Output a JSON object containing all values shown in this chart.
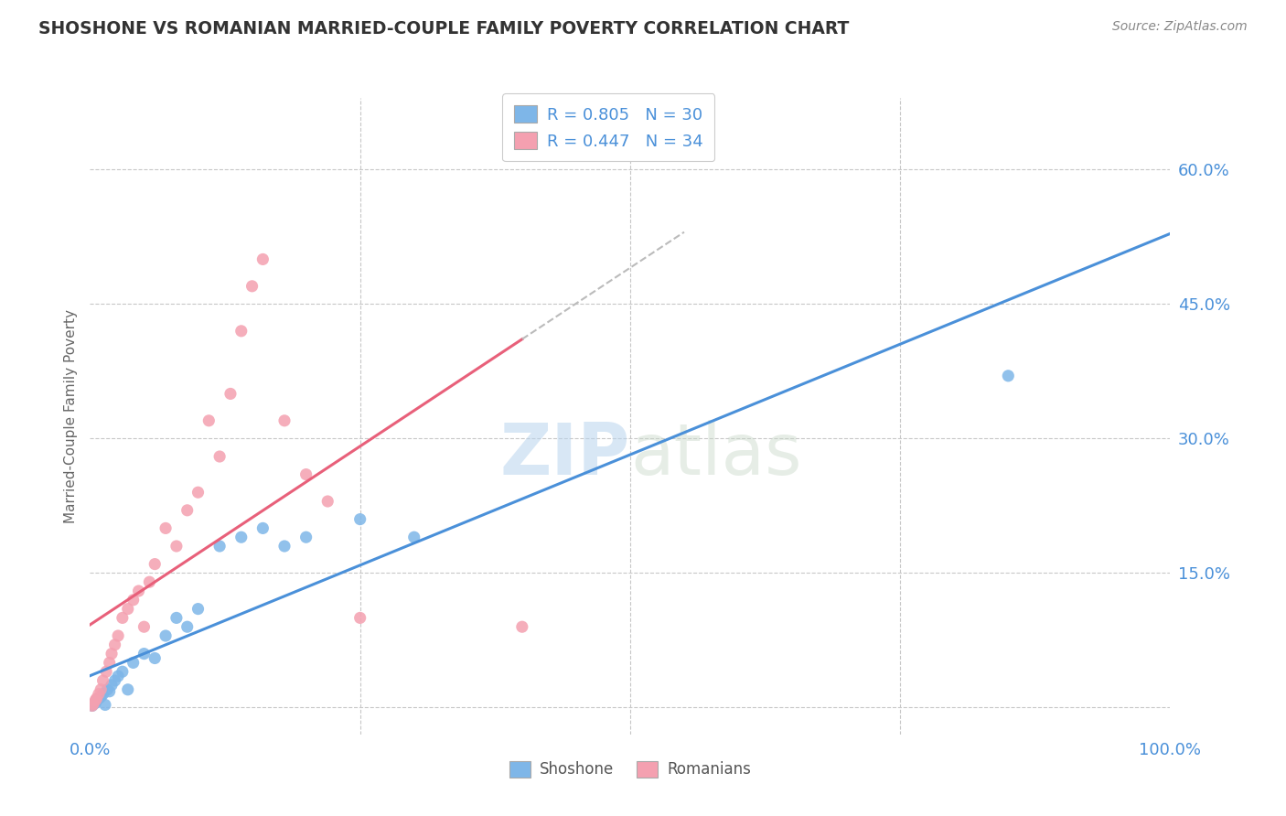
{
  "title": "SHOSHONE VS ROMANIAN MARRIED-COUPLE FAMILY POVERTY CORRELATION CHART",
  "source": "Source: ZipAtlas.com",
  "xmin": 0.0,
  "xmax": 100.0,
  "ymin": -3.0,
  "ymax": 68.0,
  "shoshone_color": "#7EB6E8",
  "romanian_color": "#F4A0B0",
  "shoshone_line_color": "#4A90D9",
  "romanian_line_color": "#E8607A",
  "shoshone_R": 0.805,
  "shoshone_N": 30,
  "romanian_R": 0.447,
  "romanian_N": 34,
  "watermark_zip": "ZIP",
  "watermark_atlas": "atlas",
  "background_color": "#ffffff",
  "grid_color": "#c8c8c8",
  "shoshone_x": [
    0.2,
    0.3,
    0.5,
    0.6,
    0.8,
    1.0,
    1.2,
    1.4,
    1.6,
    1.8,
    2.0,
    2.3,
    2.6,
    3.0,
    3.5,
    4.0,
    5.0,
    6.0,
    7.0,
    8.0,
    9.0,
    10.0,
    12.0,
    14.0,
    16.0,
    18.0,
    20.0,
    25.0,
    30.0,
    85.0
  ],
  "shoshone_y": [
    0.2,
    0.4,
    0.5,
    0.8,
    1.0,
    1.2,
    1.5,
    0.3,
    2.0,
    1.8,
    2.5,
    3.0,
    3.5,
    4.0,
    2.0,
    5.0,
    6.0,
    5.5,
    8.0,
    10.0,
    9.0,
    11.0,
    18.0,
    19.0,
    20.0,
    18.0,
    19.0,
    21.0,
    19.0,
    37.0
  ],
  "romanian_x": [
    0.2,
    0.3,
    0.5,
    0.6,
    0.8,
    1.0,
    1.2,
    1.5,
    1.8,
    2.0,
    2.3,
    2.6,
    3.0,
    3.5,
    4.0,
    4.5,
    5.0,
    5.5,
    6.0,
    7.0,
    8.0,
    9.0,
    10.0,
    11.0,
    12.0,
    13.0,
    14.0,
    15.0,
    16.0,
    18.0,
    20.0,
    22.0,
    25.0,
    40.0
  ],
  "romanian_y": [
    0.2,
    0.4,
    0.8,
    1.0,
    1.5,
    2.0,
    3.0,
    4.0,
    5.0,
    6.0,
    7.0,
    8.0,
    10.0,
    11.0,
    12.0,
    13.0,
    9.0,
    14.0,
    16.0,
    20.0,
    18.0,
    22.0,
    24.0,
    32.0,
    28.0,
    35.0,
    42.0,
    47.0,
    50.0,
    32.0,
    26.0,
    23.0,
    10.0,
    9.0
  ]
}
